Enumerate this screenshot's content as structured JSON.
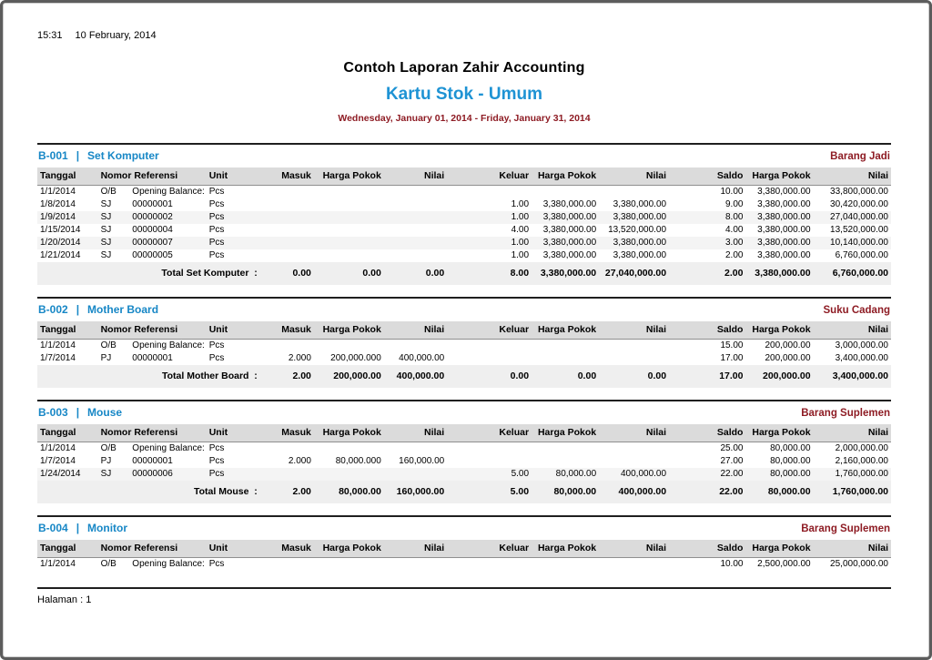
{
  "meta": {
    "time": "15:31",
    "date": "10 February, 2014"
  },
  "header": {
    "company": "Contoh Laporan Zahir Accounting",
    "report_title": "Kartu Stok - Umum",
    "period": "Wednesday, January 01, 2014 - Friday, January 31, 2014"
  },
  "section_separator": "|",
  "columns": [
    "Tanggal",
    "Nomor Referensi",
    "Unit",
    "Masuk",
    "Harga Pokok",
    "Nilai",
    "Keluar",
    "Harga Pokok",
    "Nilai",
    "Saldo",
    "Harga Pokok",
    "Nilai"
  ],
  "sections": [
    {
      "code": "B-001",
      "name": "Set Komputer",
      "category": "Barang Jadi",
      "rows": [
        [
          "1/1/2014",
          "O/B",
          "Opening Balance:",
          "Pcs",
          "",
          "",
          "",
          "",
          "",
          "",
          "10.00",
          "3,380,000.00",
          "33,800,000.00"
        ],
        [
          "1/8/2014",
          "SJ",
          "00000001",
          "Pcs",
          "",
          "",
          "",
          "1.00",
          "3,380,000.00",
          "3,380,000.00",
          "9.00",
          "3,380,000.00",
          "30,420,000.00"
        ],
        [
          "1/9/2014",
          "SJ",
          "00000002",
          "Pcs",
          "",
          "",
          "",
          "1.00",
          "3,380,000.00",
          "3,380,000.00",
          "8.00",
          "3,380,000.00",
          "27,040,000.00"
        ],
        [
          "1/15/2014",
          "SJ",
          "00000004",
          "Pcs",
          "",
          "",
          "",
          "4.00",
          "3,380,000.00",
          "13,520,000.00",
          "4.00",
          "3,380,000.00",
          "13,520,000.00"
        ],
        [
          "1/20/2014",
          "SJ",
          "00000007",
          "Pcs",
          "",
          "",
          "",
          "1.00",
          "3,380,000.00",
          "3,380,000.00",
          "3.00",
          "3,380,000.00",
          "10,140,000.00"
        ],
        [
          "1/21/2014",
          "SJ",
          "00000005",
          "Pcs",
          "",
          "",
          "",
          "1.00",
          "3,380,000.00",
          "3,380,000.00",
          "2.00",
          "3,380,000.00",
          "6,760,000.00"
        ]
      ],
      "total_label": "Total Set Komputer  :",
      "total": [
        "0.00",
        "0.00",
        "0.00",
        "8.00",
        "3,380,000.00",
        "27,040,000.00",
        "2.00",
        "3,380,000.00",
        "6,760,000.00"
      ]
    },
    {
      "code": "B-002",
      "name": "Mother Board",
      "category": "Suku Cadang",
      "rows": [
        [
          "1/1/2014",
          "O/B",
          "Opening Balance:",
          "Pcs",
          "",
          "",
          "",
          "",
          "",
          "",
          "15.00",
          "200,000.00",
          "3,000,000.00"
        ],
        [
          "1/7/2014",
          "PJ",
          "00000001",
          "Pcs",
          "2.000",
          "200,000.000",
          "400,000.00",
          "",
          "",
          "",
          "17.00",
          "200,000.00",
          "3,400,000.00"
        ]
      ],
      "total_label": "Total Mother Board  :",
      "total": [
        "2.00",
        "200,000.00",
        "400,000.00",
        "0.00",
        "0.00",
        "0.00",
        "17.00",
        "200,000.00",
        "3,400,000.00"
      ]
    },
    {
      "code": "B-003",
      "name": "Mouse",
      "category": "Barang Suplemen",
      "rows": [
        [
          "1/1/2014",
          "O/B",
          "Opening Balance:",
          "Pcs",
          "",
          "",
          "",
          "",
          "",
          "",
          "25.00",
          "80,000.00",
          "2,000,000.00"
        ],
        [
          "1/7/2014",
          "PJ",
          "00000001",
          "Pcs",
          "2.000",
          "80,000.000",
          "160,000.00",
          "",
          "",
          "",
          "27.00",
          "80,000.00",
          "2,160,000.00"
        ],
        [
          "1/24/2014",
          "SJ",
          "00000006",
          "Pcs",
          "",
          "",
          "",
          "5.00",
          "80,000.00",
          "400,000.00",
          "22.00",
          "80,000.00",
          "1,760,000.00"
        ]
      ],
      "total_label": "Total Mouse  :",
      "total": [
        "2.00",
        "80,000.00",
        "160,000.00",
        "5.00",
        "80,000.00",
        "400,000.00",
        "22.00",
        "80,000.00",
        "1,760,000.00"
      ]
    },
    {
      "code": "B-004",
      "name": "Monitor",
      "category": "Barang Suplemen",
      "rows": [
        [
          "1/1/2014",
          "O/B",
          "Opening Balance:",
          "Pcs",
          "",
          "",
          "",
          "",
          "",
          "",
          "10.00",
          "2,500,000.00",
          "25,000,000.00"
        ]
      ]
    }
  ],
  "footer": {
    "page": "Halaman : 1"
  },
  "colors": {
    "accent_blue": "#1787c6",
    "title_blue": "#1e93d4",
    "accent_red": "#8e1c24",
    "header_row_bg": "#dbdbdb",
    "total_row_bg": "#efefef"
  }
}
